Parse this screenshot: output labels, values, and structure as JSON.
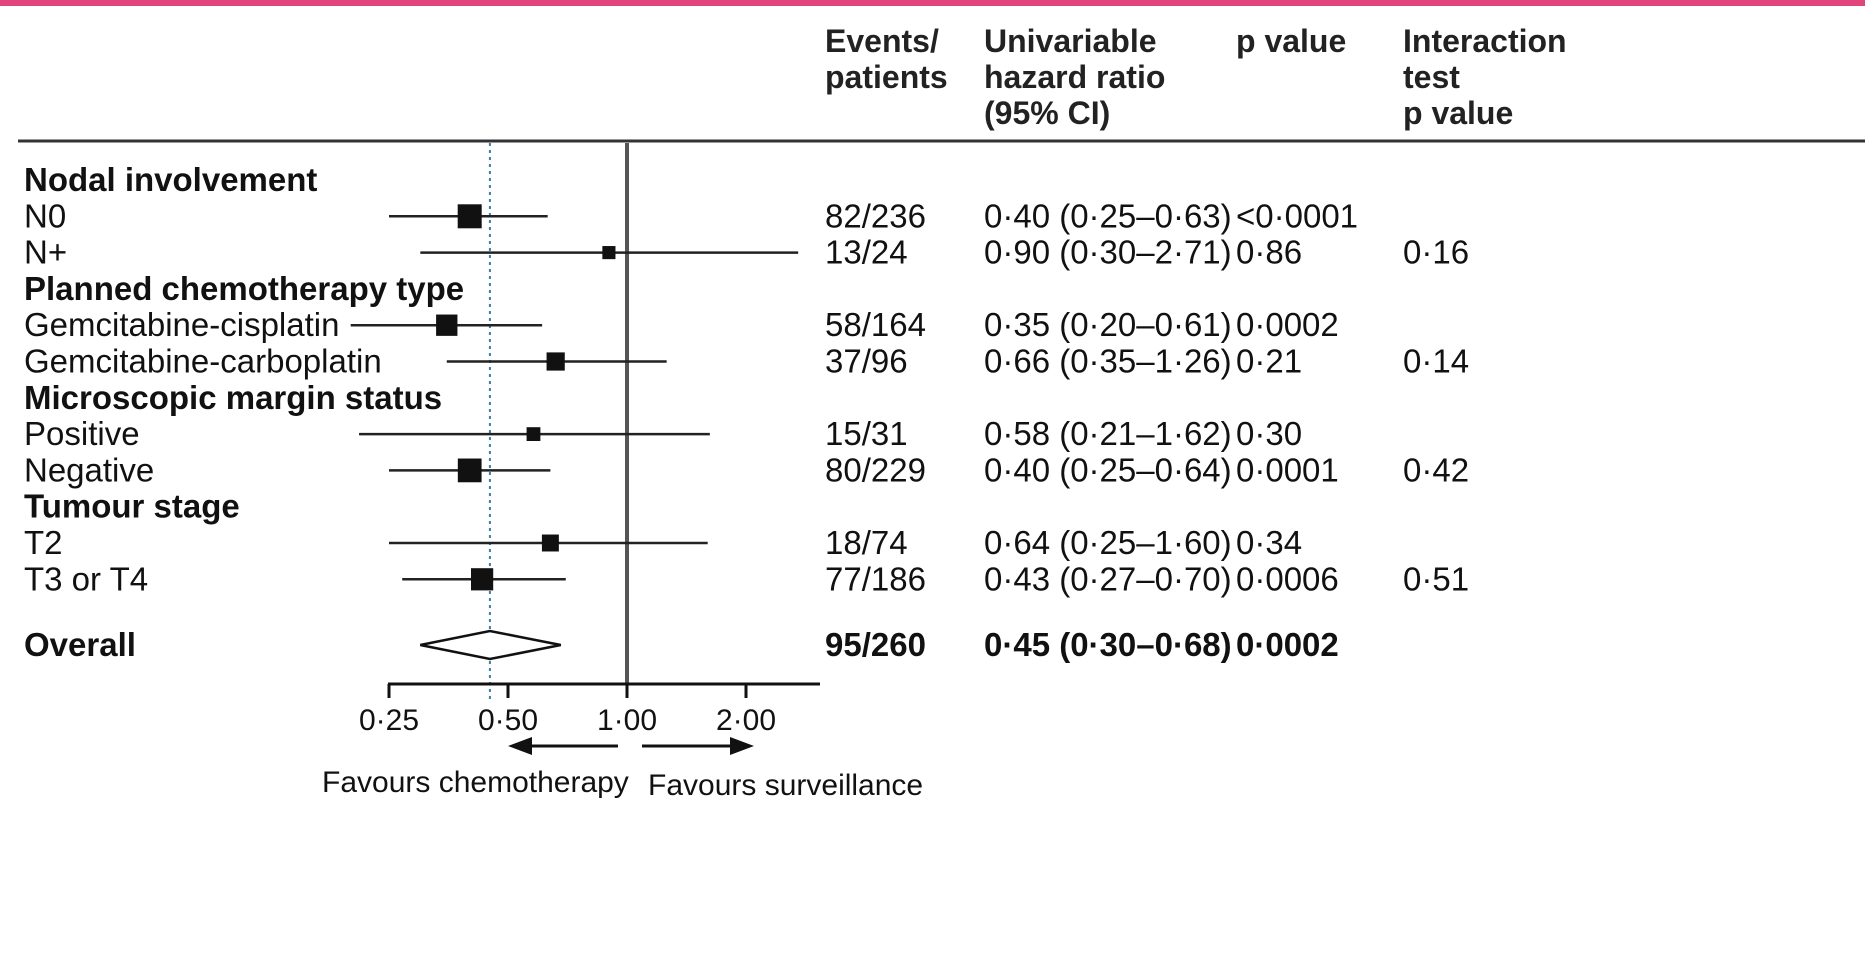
{
  "colors": {
    "top_rule": "#e0457b",
    "rule": "#333333",
    "ink": "#111111",
    "reference_dotted": "#3a7fa8"
  },
  "headers": {
    "events": [
      "Events/",
      "patients"
    ],
    "hr": [
      "Univariable",
      "hazard ratio",
      "(95% CI)"
    ],
    "p": [
      "p value"
    ],
    "interaction": [
      "Interaction",
      "test",
      "p value"
    ]
  },
  "direction_labels": {
    "left": "Favours chemotherapy",
    "right": "Favours surveillance"
  },
  "chart_data": {
    "type": "forest",
    "x_scale": "log",
    "xlim": [
      0.25,
      2.5
    ],
    "xticks": [
      {
        "value": 0.25,
        "label": "0·25"
      },
      {
        "value": 0.5,
        "label": "0·50"
      },
      {
        "value": 1.0,
        "label": "1·00"
      },
      {
        "value": 2.0,
        "label": "2·00"
      }
    ],
    "reference_line": 1.0,
    "overall_line": 0.45,
    "rows": [
      {
        "kind": "group",
        "label": "Nodal involvement"
      },
      {
        "kind": "item",
        "label": "N0",
        "hr": 0.4,
        "lo": 0.25,
        "hi": 0.63,
        "weight": 236,
        "events": "82/236",
        "hr_text": "0·40 (0·25–0·63)",
        "p": "<0·0001",
        "interaction": ""
      },
      {
        "kind": "item",
        "label": "N+",
        "hr": 0.9,
        "lo": 0.3,
        "hi": 2.71,
        "weight": 24,
        "events": "13/24",
        "hr_text": "0·90 (0·30–2·71)",
        "p": "0·86",
        "interaction": "0·16"
      },
      {
        "kind": "group",
        "label": "Planned chemotherapy type"
      },
      {
        "kind": "item",
        "label": "Gemcitabine-cisplatin",
        "hr": 0.35,
        "lo": 0.2,
        "hi": 0.61,
        "weight": 164,
        "events": "58/164",
        "hr_text": "0·35 (0·20–0·61)",
        "p": "0·0002",
        "interaction": ""
      },
      {
        "kind": "item",
        "label": "Gemcitabine-carboplatin",
        "hr": 0.66,
        "lo": 0.35,
        "hi": 1.26,
        "weight": 96,
        "events": "37/96",
        "hr_text": "0·66 (0·35–1·26)",
        "p": "0·21",
        "interaction": "0·14"
      },
      {
        "kind": "group",
        "label": "Microscopic margin status"
      },
      {
        "kind": "item",
        "label": "Positive",
        "hr": 0.58,
        "lo": 0.21,
        "hi": 1.62,
        "weight": 31,
        "events": "15/31",
        "hr_text": "0·58 (0·21–1·62)",
        "p": "0·30",
        "interaction": ""
      },
      {
        "kind": "item",
        "label": "Negative",
        "hr": 0.4,
        "lo": 0.25,
        "hi": 0.64,
        "weight": 229,
        "events": "80/229",
        "hr_text": "0·40 (0·25–0·64)",
        "p": "0·0001",
        "interaction": "0·42"
      },
      {
        "kind": "group",
        "label": "Tumour stage"
      },
      {
        "kind": "item",
        "label": "T2",
        "hr": 0.64,
        "lo": 0.25,
        "hi": 1.6,
        "weight": 74,
        "events": "18/74",
        "hr_text": "0·64 (0·25–1·60)",
        "p": "0·34",
        "interaction": ""
      },
      {
        "kind": "item",
        "label": "T3 or T4",
        "hr": 0.43,
        "lo": 0.27,
        "hi": 0.7,
        "weight": 186,
        "events": "77/186",
        "hr_text": "0·43 (0·27–0·70)",
        "p": "0·0006",
        "interaction": "0·51"
      },
      {
        "kind": "overall",
        "label": "Overall",
        "hr": 0.45,
        "lo": 0.3,
        "hi": 0.68,
        "events": "95/260",
        "hr_text": "0·45 (0·30–0·68)",
        "p": "0·0002",
        "interaction": ""
      }
    ]
  }
}
